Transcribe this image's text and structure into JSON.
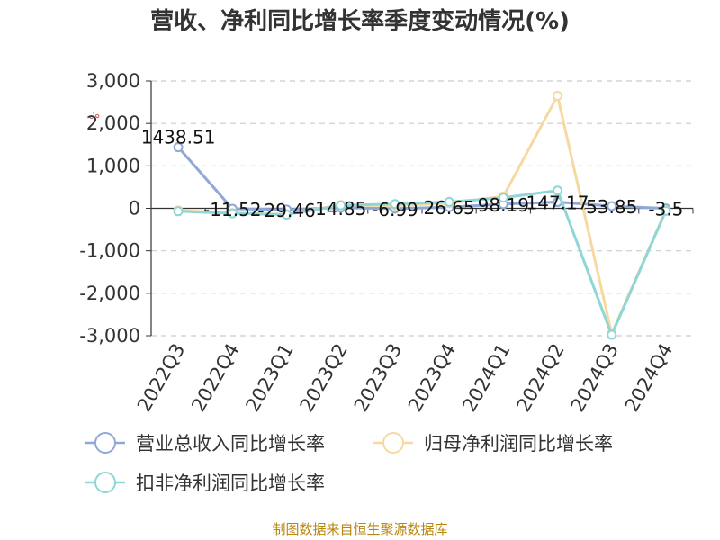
{
  "chart_data": {
    "type": "line",
    "title": "营收、净利同比增长率季度变动情况(%)",
    "unit_label": "%",
    "categories": [
      "2022Q3",
      "2022Q4",
      "2023Q1",
      "2023Q2",
      "2023Q3",
      "2023Q4",
      "2024Q1",
      "2024Q2",
      "2024Q3",
      "2024Q4"
    ],
    "ylim": [
      -3000,
      3000
    ],
    "yticks": [
      3000,
      2000,
      1000,
      0,
      -1000,
      -2000,
      -3000
    ],
    "ytick_labels": [
      "3,000",
      "2,000",
      "1,000",
      "0",
      "-1,000",
      "-2,000",
      "-3,000"
    ],
    "grid": true,
    "legend_position": "bottom",
    "series": [
      {
        "name": "营业总收入同比增长率",
        "color": "#8fa8d8",
        "values": [
          1438.51,
          -11.52,
          -29.46,
          14.85,
          -6.99,
          26.65,
          98.19,
          147.17,
          53.85,
          -3.5
        ],
        "data_labels": [
          "1438.51",
          "-11.52",
          "-29.46",
          "14.85",
          "-6.99",
          "26.65",
          "98.19",
          "147.17",
          "53.85",
          "-3.5"
        ]
      },
      {
        "name": "归母净利润同比增长率",
        "color": "#f7d9a0",
        "values": [
          -50,
          -110,
          -140,
          80,
          60,
          120,
          280,
          2650,
          -2950,
          -50
        ]
      },
      {
        "name": "扣非净利润同比增长率",
        "color": "#8fd6d6",
        "values": [
          -70,
          -120,
          -150,
          70,
          100,
          150,
          250,
          420,
          -2980,
          -60
        ]
      }
    ]
  },
  "source_text": "制图数据来自恒生聚源数据库"
}
